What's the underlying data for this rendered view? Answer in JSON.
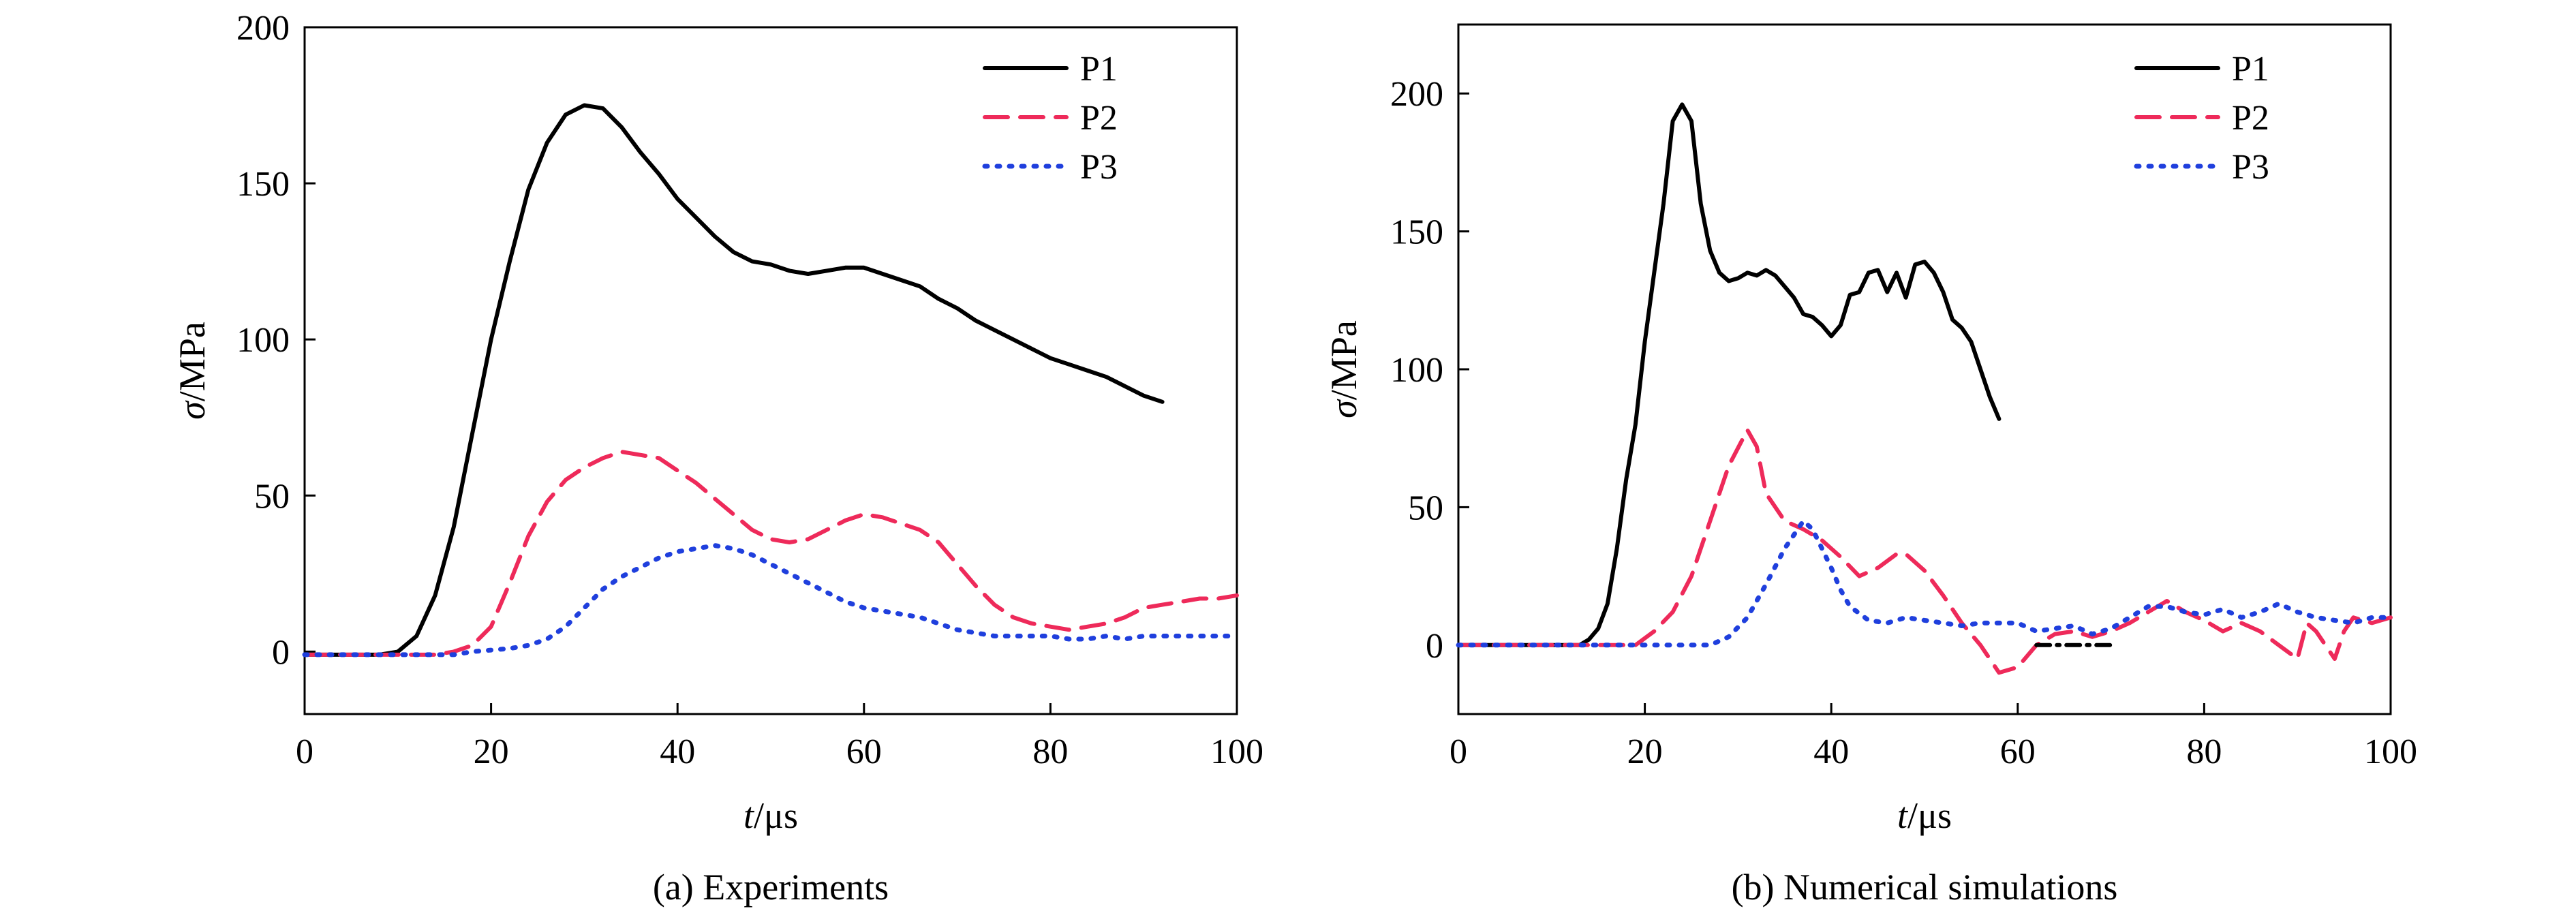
{
  "chart_data": [
    {
      "type": "line",
      "caption": "(a) Experiments",
      "xlabel_italic": "t",
      "xlabel_unit": "/μs",
      "ylabel_italic": "σ",
      "ylabel_unit": "/MPa",
      "xlim": [
        0,
        100
      ],
      "ylim": [
        -20,
        200
      ],
      "xticks": [
        0,
        20,
        40,
        60,
        80,
        100
      ],
      "yticks": [
        0,
        50,
        100,
        150,
        200
      ],
      "grid": false,
      "legend_position": "top-right",
      "series": [
        {
          "name": "P1",
          "color": "#000000",
          "dash": "solid",
          "points": [
            [
              0,
              -1
            ],
            [
              5,
              -1
            ],
            [
              8,
              -1
            ],
            [
              10,
              0
            ],
            [
              12,
              5
            ],
            [
              14,
              18
            ],
            [
              16,
              40
            ],
            [
              18,
              70
            ],
            [
              20,
              100
            ],
            [
              22,
              125
            ],
            [
              24,
              148
            ],
            [
              26,
              163
            ],
            [
              28,
              172
            ],
            [
              30,
              175
            ],
            [
              32,
              174
            ],
            [
              34,
              168
            ],
            [
              36,
              160
            ],
            [
              38,
              153
            ],
            [
              40,
              145
            ],
            [
              42,
              139
            ],
            [
              44,
              133
            ],
            [
              46,
              128
            ],
            [
              48,
              125
            ],
            [
              50,
              124
            ],
            [
              52,
              122
            ],
            [
              54,
              121
            ],
            [
              56,
              122
            ],
            [
              58,
              123
            ],
            [
              60,
              123
            ],
            [
              62,
              121
            ],
            [
              64,
              119
            ],
            [
              66,
              117
            ],
            [
              68,
              113
            ],
            [
              70,
              110
            ],
            [
              72,
              106
            ],
            [
              74,
              103
            ],
            [
              76,
              100
            ],
            [
              78,
              97
            ],
            [
              80,
              94
            ],
            [
              82,
              92
            ],
            [
              84,
              90
            ],
            [
              86,
              88
            ],
            [
              88,
              85
            ],
            [
              90,
              82
            ],
            [
              92,
              80
            ]
          ]
        },
        {
          "name": "P2",
          "color": "#ee2a5a",
          "dash": "dash",
          "points": [
            [
              0,
              -1
            ],
            [
              10,
              -1
            ],
            [
              14,
              -1
            ],
            [
              16,
              0
            ],
            [
              18,
              2
            ],
            [
              20,
              8
            ],
            [
              22,
              22
            ],
            [
              24,
              37
            ],
            [
              26,
              48
            ],
            [
              28,
              55
            ],
            [
              30,
              59
            ],
            [
              32,
              62
            ],
            [
              34,
              64
            ],
            [
              36,
              63
            ],
            [
              38,
              62
            ],
            [
              40,
              58
            ],
            [
              42,
              54
            ],
            [
              44,
              49
            ],
            [
              46,
              44
            ],
            [
              48,
              39
            ],
            [
              50,
              36
            ],
            [
              52,
              35
            ],
            [
              54,
              36
            ],
            [
              56,
              39
            ],
            [
              58,
              42
            ],
            [
              60,
              44
            ],
            [
              62,
              43
            ],
            [
              64,
              41
            ],
            [
              66,
              39
            ],
            [
              68,
              35
            ],
            [
              70,
              28
            ],
            [
              72,
              21
            ],
            [
              74,
              15
            ],
            [
              76,
              11
            ],
            [
              78,
              9
            ],
            [
              80,
              8
            ],
            [
              82,
              7
            ],
            [
              84,
              8
            ],
            [
              86,
              9
            ],
            [
              88,
              11
            ],
            [
              90,
              14
            ],
            [
              92,
              15
            ],
            [
              94,
              16
            ],
            [
              96,
              17
            ],
            [
              98,
              17
            ],
            [
              100,
              18
            ]
          ]
        },
        {
          "name": "P3",
          "color": "#1f3fdd",
          "dash": "dot",
          "points": [
            [
              0,
              -1
            ],
            [
              10,
              -1
            ],
            [
              16,
              -1
            ],
            [
              18,
              0
            ],
            [
              22,
              1
            ],
            [
              24,
              2
            ],
            [
              26,
              4
            ],
            [
              28,
              8
            ],
            [
              30,
              14
            ],
            [
              32,
              20
            ],
            [
              34,
              24
            ],
            [
              36,
              27
            ],
            [
              38,
              30
            ],
            [
              40,
              32
            ],
            [
              42,
              33
            ],
            [
              44,
              34
            ],
            [
              46,
              33
            ],
            [
              48,
              31
            ],
            [
              50,
              28
            ],
            [
              52,
              25
            ],
            [
              54,
              22
            ],
            [
              56,
              19
            ],
            [
              58,
              16
            ],
            [
              60,
              14
            ],
            [
              62,
              13
            ],
            [
              64,
              12
            ],
            [
              66,
              11
            ],
            [
              68,
              9
            ],
            [
              70,
              7
            ],
            [
              72,
              6
            ],
            [
              74,
              5
            ],
            [
              76,
              5
            ],
            [
              78,
              5
            ],
            [
              80,
              5
            ],
            [
              82,
              4
            ],
            [
              84,
              4
            ],
            [
              86,
              5
            ],
            [
              88,
              4
            ],
            [
              90,
              5
            ],
            [
              92,
              5
            ],
            [
              94,
              5
            ],
            [
              96,
              5
            ],
            [
              98,
              5
            ],
            [
              100,
              5
            ]
          ]
        }
      ]
    },
    {
      "type": "line",
      "caption": "(b) Numerical simulations",
      "xlabel_italic": "t",
      "xlabel_unit": "/μs",
      "ylabel_italic": "σ",
      "ylabel_unit": "/MPa",
      "xlim": [
        0,
        100
      ],
      "ylim": [
        -25,
        225
      ],
      "xticks": [
        0,
        20,
        40,
        60,
        80,
        100
      ],
      "yticks": [
        0,
        50,
        100,
        150,
        200
      ],
      "grid": false,
      "legend_position": "top-right",
      "series": [
        {
          "name": "P1",
          "color": "#000000",
          "dash": "solid",
          "points": [
            [
              0,
              0
            ],
            [
              10,
              0
            ],
            [
              13,
              0
            ],
            [
              14,
              2
            ],
            [
              15,
              6
            ],
            [
              16,
              15
            ],
            [
              17,
              35
            ],
            [
              18,
              60
            ],
            [
              19,
              80
            ],
            [
              20,
              110
            ],
            [
              21,
              135
            ],
            [
              22,
              160
            ],
            [
              23,
              190
            ],
            [
              24,
              196
            ],
            [
              25,
              190
            ],
            [
              26,
              160
            ],
            [
              27,
              143
            ],
            [
              28,
              135
            ],
            [
              29,
              132
            ],
            [
              30,
              133
            ],
            [
              31,
              135
            ],
            [
              32,
              134
            ],
            [
              33,
              136
            ],
            [
              34,
              134
            ],
            [
              35,
              130
            ],
            [
              36,
              126
            ],
            [
              37,
              120
            ],
            [
              38,
              119
            ],
            [
              39,
              116
            ],
            [
              40,
              112
            ],
            [
              41,
              116
            ],
            [
              42,
              127
            ],
            [
              43,
              128
            ],
            [
              44,
              135
            ],
            [
              45,
              136
            ],
            [
              46,
              128
            ],
            [
              47,
              135
            ],
            [
              48,
              126
            ],
            [
              49,
              138
            ],
            [
              50,
              139
            ],
            [
              51,
              135
            ],
            [
              52,
              128
            ],
            [
              53,
              118
            ],
            [
              54,
              115
            ],
            [
              55,
              110
            ],
            [
              56,
              100
            ],
            [
              57,
              90
            ],
            [
              58,
              82
            ]
          ]
        },
        {
          "name": "P2",
          "color": "#ee2a5a",
          "dash": "dash",
          "points": [
            [
              0,
              0
            ],
            [
              16,
              0
            ],
            [
              19,
              0
            ],
            [
              21,
              5
            ],
            [
              23,
              12
            ],
            [
              25,
              25
            ],
            [
              27,
              45
            ],
            [
              29,
              65
            ],
            [
              31,
              78
            ],
            [
              32,
              72
            ],
            [
              33,
              55
            ],
            [
              35,
              45
            ],
            [
              37,
              42
            ],
            [
              39,
              38
            ],
            [
              41,
              32
            ],
            [
              43,
              25
            ],
            [
              45,
              28
            ],
            [
              47,
              33
            ],
            [
              48,
              33
            ],
            [
              50,
              27
            ],
            [
              52,
              18
            ],
            [
              54,
              8
            ],
            [
              56,
              0
            ],
            [
              58,
              -10
            ],
            [
              60,
              -8
            ],
            [
              62,
              0
            ],
            [
              64,
              4
            ],
            [
              66,
              5
            ],
            [
              68,
              3
            ],
            [
              70,
              5
            ],
            [
              72,
              8
            ],
            [
              74,
              12
            ],
            [
              76,
              16
            ],
            [
              78,
              12
            ],
            [
              80,
              9
            ],
            [
              82,
              5
            ],
            [
              84,
              8
            ],
            [
              86,
              5
            ],
            [
              88,
              0
            ],
            [
              90,
              -5
            ],
            [
              91,
              8
            ],
            [
              92,
              5
            ],
            [
              94,
              -5
            ],
            [
              95,
              5
            ],
            [
              96,
              10
            ],
            [
              98,
              8
            ],
            [
              100,
              10
            ]
          ]
        },
        {
          "name": "P3",
          "color": "#1f3fdd",
          "dash": "dot",
          "points": [
            [
              0,
              0
            ],
            [
              20,
              0
            ],
            [
              27,
              0
            ],
            [
              29,
              3
            ],
            [
              31,
              10
            ],
            [
              33,
              22
            ],
            [
              35,
              35
            ],
            [
              37,
              45
            ],
            [
              38,
              42
            ],
            [
              39,
              35
            ],
            [
              40,
              28
            ],
            [
              41,
              20
            ],
            [
              42,
              14
            ],
            [
              44,
              9
            ],
            [
              46,
              8
            ],
            [
              48,
              10
            ],
            [
              50,
              9
            ],
            [
              52,
              8
            ],
            [
              54,
              7
            ],
            [
              56,
              8
            ],
            [
              58,
              8
            ],
            [
              60,
              8
            ],
            [
              62,
              5
            ],
            [
              64,
              6
            ],
            [
              66,
              7
            ],
            [
              68,
              4
            ],
            [
              70,
              6
            ],
            [
              72,
              10
            ],
            [
              74,
              14
            ],
            [
              76,
              14
            ],
            [
              78,
              12
            ],
            [
              80,
              11
            ],
            [
              82,
              13
            ],
            [
              84,
              10
            ],
            [
              86,
              12
            ],
            [
              88,
              15
            ],
            [
              90,
              12
            ],
            [
              92,
              10
            ],
            [
              94,
              9
            ],
            [
              96,
              8
            ],
            [
              98,
              10
            ],
            [
              100,
              10
            ]
          ]
        },
        {
          "name": "",
          "color": "#000000",
          "dash": "dashdot",
          "points": [
            [
              62,
              0
            ],
            [
              70,
              0
            ]
          ]
        }
      ]
    }
  ]
}
